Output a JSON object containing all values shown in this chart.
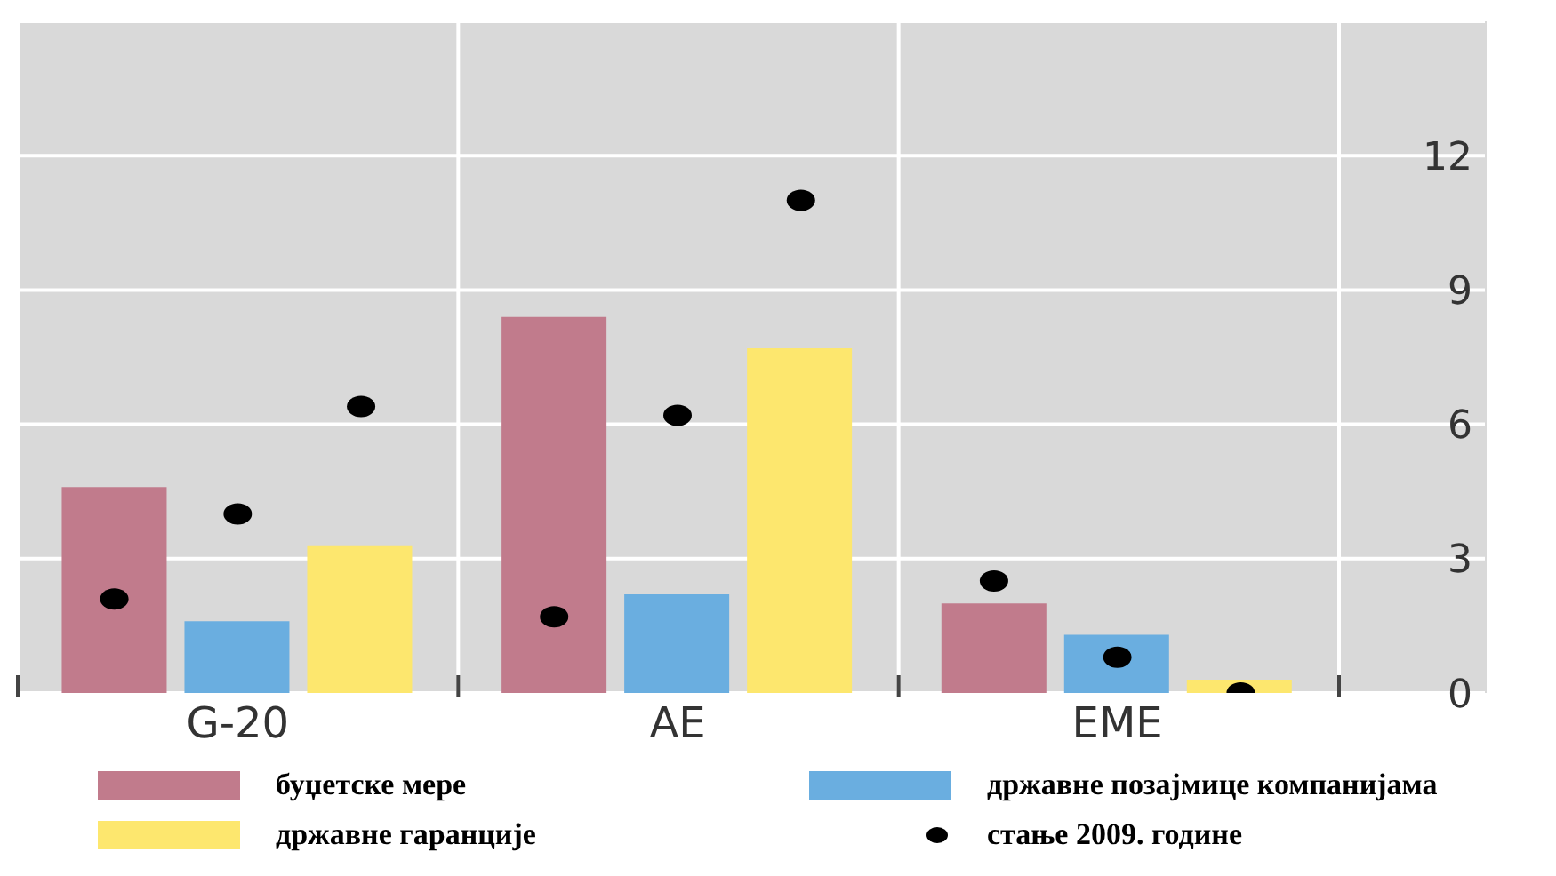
{
  "chart_data": {
    "type": "bar",
    "categories": [
      "G-20",
      "AE",
      "EME"
    ],
    "series": [
      {
        "name": "буџетске мере",
        "color": "#c17b8c",
        "values": [
          4.6,
          8.4,
          2.0
        ]
      },
      {
        "name": "државне позајмице компанијама",
        "color": "#6aaee0",
        "values": [
          1.6,
          2.2,
          1.3
        ]
      },
      {
        "name": "државне гаранције",
        "color": "#fde76e",
        "values": [
          3.3,
          7.7,
          0.3
        ]
      },
      {
        "name": "стање 2009. године",
        "type": "scatter",
        "color": "#000000",
        "x": [
          "G-20",
          "G-20",
          "G-20",
          "AE",
          "AE",
          "AE",
          "EME",
          "EME",
          "EME"
        ],
        "values": [
          2.1,
          4.0,
          6.4,
          1.7,
          6.2,
          11.0,
          2.5,
          0.8,
          0.0
        ]
      }
    ],
    "ylim": [
      0,
      15
    ],
    "yticks": [
      0,
      3,
      6,
      9,
      12
    ],
    "grid": true,
    "legend": "bottom",
    "marker": "circle"
  }
}
